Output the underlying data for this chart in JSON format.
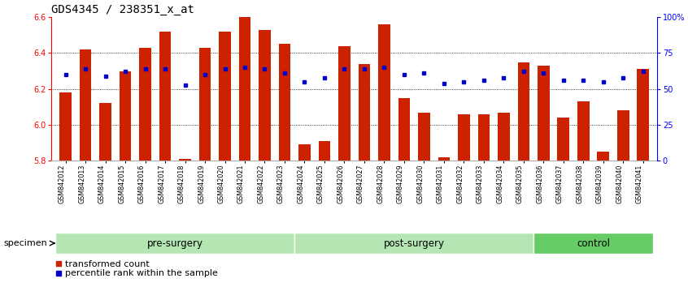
{
  "title": "GDS4345 / 238351_x_at",
  "categories": [
    "GSM842012",
    "GSM842013",
    "GSM842014",
    "GSM842015",
    "GSM842016",
    "GSM842017",
    "GSM842018",
    "GSM842019",
    "GSM842020",
    "GSM842021",
    "GSM842022",
    "GSM842023",
    "GSM842024",
    "GSM842025",
    "GSM842026",
    "GSM842027",
    "GSM842028",
    "GSM842029",
    "GSM842030",
    "GSM842031",
    "GSM842032",
    "GSM842033",
    "GSM842034",
    "GSM842035",
    "GSM842036",
    "GSM842037",
    "GSM842038",
    "GSM842039",
    "GSM842040",
    "GSM842041"
  ],
  "bar_values": [
    6.18,
    6.42,
    6.12,
    6.3,
    6.43,
    6.52,
    5.81,
    6.43,
    6.52,
    6.6,
    6.53,
    6.45,
    5.89,
    5.91,
    6.44,
    6.34,
    6.56,
    6.15,
    6.07,
    5.82,
    6.06,
    6.06,
    6.07,
    6.35,
    6.33,
    6.04,
    6.13,
    5.85,
    6.08,
    6.31
  ],
  "percentile_values": [
    6.28,
    6.31,
    6.27,
    6.3,
    6.31,
    6.31,
    6.22,
    6.28,
    6.31,
    6.32,
    6.31,
    6.29,
    6.24,
    6.26,
    6.31,
    6.31,
    6.32,
    6.28,
    6.29,
    6.23,
    6.24,
    6.25,
    6.26,
    6.3,
    6.29,
    6.25,
    6.25,
    6.24,
    6.26,
    6.3
  ],
  "group_info": [
    {
      "label": "pre-surgery",
      "start": 0,
      "end": 11,
      "color": "#b3e6b3"
    },
    {
      "label": "post-surgery",
      "start": 12,
      "end": 23,
      "color": "#b3e6b3"
    },
    {
      "label": "control",
      "start": 24,
      "end": 29,
      "color": "#66cc66"
    }
  ],
  "bar_color": "#cc2200",
  "dot_color": "#0000cc",
  "ylim": [
    5.8,
    6.6
  ],
  "yticks_left": [
    5.8,
    6.0,
    6.2,
    6.4,
    6.6
  ],
  "yticks_right_vals": [
    0,
    25,
    50,
    75,
    100
  ],
  "yticks_right_labels": [
    "0",
    "25",
    "50",
    "75",
    "100%"
  ],
  "background_color": "#ffffff",
  "plot_bg_color": "#ffffff",
  "legend_items": [
    "transformed count",
    "percentile rank within the sample"
  ],
  "specimen_label": "specimen",
  "title_fontsize": 10,
  "tick_fontsize": 7,
  "group_fontsize": 8.5,
  "legend_fontsize": 8,
  "label_fontsize": 5.8
}
